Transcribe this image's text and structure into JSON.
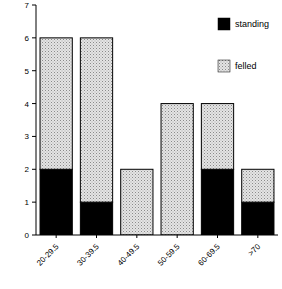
{
  "chart_data": {
    "type": "bar",
    "stacked": true,
    "legend": "top-right",
    "grid": false,
    "categories": [
      "20-29.5",
      "30-39.5",
      "40-49.5",
      "50-59.5",
      "60-69.5",
      ">70"
    ],
    "series": [
      {
        "name": "standing",
        "color": "#000000",
        "values": [
          2,
          1,
          0,
          0,
          2,
          1
        ]
      },
      {
        "name": "felled",
        "color": "#e4e4e4",
        "values": [
          4,
          5,
          2,
          4,
          2,
          1
        ]
      }
    ],
    "ylim": [
      0,
      7
    ],
    "yticks": [
      0,
      1,
      2,
      3,
      4,
      5,
      6,
      7
    ]
  }
}
